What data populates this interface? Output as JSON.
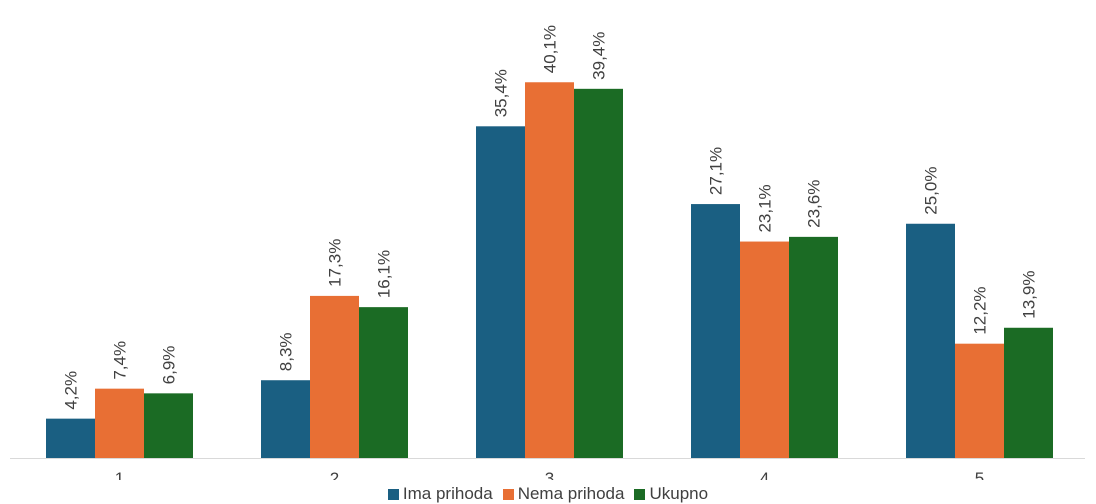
{
  "chart_data": {
    "type": "bar",
    "categories": [
      "1",
      "2",
      "3",
      "4",
      "5"
    ],
    "series": [
      {
        "name": "Ima prihoda",
        "color": "#1a5f82",
        "values": [
          4.2,
          8.3,
          35.4,
          27.1,
          25.0
        ],
        "labels": [
          "4,2%",
          "8,3%",
          "35,4%",
          "27,1%",
          "25,0%"
        ]
      },
      {
        "name": "Nema prihoda",
        "color": "#e86f34",
        "values": [
          7.4,
          17.3,
          40.1,
          23.1,
          12.2
        ],
        "labels": [
          "7,4%",
          "17,3%",
          "40,1%",
          "23,1%",
          "12,2%"
        ]
      },
      {
        "name": "Ukupno",
        "color": "#1b6b24",
        "values": [
          6.9,
          16.1,
          39.4,
          23.6,
          13.9
        ],
        "labels": [
          "6,9%",
          "16,1%",
          "39,4%",
          "23,6%",
          "13,9%"
        ]
      }
    ],
    "ylim": [
      0,
      42
    ],
    "grid": false,
    "legend_position": "bottom"
  }
}
